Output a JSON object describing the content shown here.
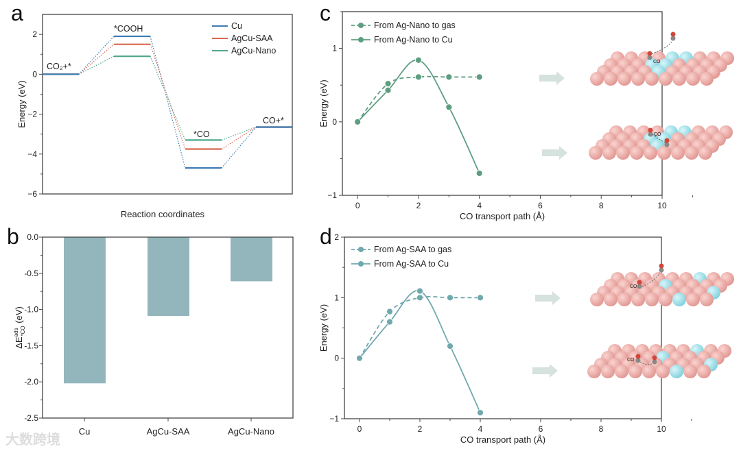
{
  "panel_labels": [
    "a",
    "b",
    "c",
    "d"
  ],
  "watermark": "大数跨境",
  "illustrations": {
    "co_label": "CO"
  },
  "chart_data": [
    {
      "panel": "a",
      "type": "line",
      "title": "",
      "xlabel": "Reaction coordinates",
      "ylabel": "Energy (eV)",
      "ylim": [
        -6,
        3
      ],
      "yticks": [
        -6,
        -4,
        -2,
        0,
        2
      ],
      "ytick_labels": [
        "−6",
        "−4",
        "−2",
        "0",
        "2"
      ],
      "categories": [
        "CO₂+*",
        "*COOH",
        "*CO",
        "CO+*"
      ],
      "legend_position": "top-right",
      "series": [
        {
          "name": "Cu",
          "color": "#3d7db5",
          "values": [
            0,
            1.9,
            -4.7,
            -2.65
          ]
        },
        {
          "name": "AgCu-SAA",
          "color": "#d9684f",
          "values": [
            0,
            1.5,
            -3.75,
            -2.65
          ]
        },
        {
          "name": "AgCu-Nano",
          "color": "#4fa88a",
          "values": [
            0,
            0.9,
            -3.3,
            -2.65
          ]
        }
      ]
    },
    {
      "panel": "b",
      "type": "bar",
      "xlabel": "",
      "ylabel": "ΔE",
      "ylabel_sup": "ads",
      "ylabel_sub": "*CO",
      "ylabel_unit": " (eV)",
      "ylim": [
        -2.5,
        0
      ],
      "yticks": [
        -2.5,
        -2.0,
        -1.5,
        -1.0,
        -0.5,
        0.0
      ],
      "ytick_labels": [
        "-2.5",
        "-2.0",
        "-1.5",
        "-1.0",
        "-0.5",
        "0.0"
      ],
      "categories": [
        "Cu",
        "AgCu-SAA",
        "AgCu-Nano"
      ],
      "values": [
        -2.02,
        -1.09,
        -0.61
      ],
      "color": "#93b6bc"
    },
    {
      "panel": "c",
      "type": "line",
      "xlabel": "CO transport path (Å)",
      "ylabel": "Energy (eV)",
      "xlim": [
        -0.5,
        10
      ],
      "ylim": [
        -1,
        1.5
      ],
      "xticks": [
        0,
        2,
        4,
        6,
        8,
        10
      ],
      "yticks": [
        -1,
        0,
        1
      ],
      "ytick_labels": [
        "−1",
        "0",
        "1"
      ],
      "legend_position": "top-left",
      "series": [
        {
          "name": "From Ag-Nano to gas",
          "style": "dashed",
          "color": "#5e9e80",
          "x": [
            0,
            1,
            2,
            3,
            4
          ],
          "y": [
            0,
            0.52,
            0.61,
            0.61,
            0.61
          ]
        },
        {
          "name": "From Ag-Nano to Cu",
          "style": "solid",
          "color": "#5e9e80",
          "x": [
            0,
            1,
            2,
            3,
            4
          ],
          "y": [
            0,
            0.43,
            0.84,
            0.2,
            -0.7
          ]
        }
      ]
    },
    {
      "panel": "d",
      "type": "line",
      "xlabel": "CO transport path (Å)",
      "ylabel": "Energy (eV)",
      "xlim": [
        -0.5,
        10
      ],
      "ylim": [
        -1,
        2
      ],
      "xticks": [
        0,
        2,
        4,
        6,
        8,
        10
      ],
      "yticks": [
        -1,
        0,
        1,
        2
      ],
      "ytick_labels": [
        "−1",
        "0",
        "1",
        "2"
      ],
      "legend_position": "top-left",
      "series": [
        {
          "name": "From Ag-SAA to gas",
          "style": "dashed",
          "color": "#6fa8ad",
          "x": [
            0,
            1,
            2,
            3,
            4
          ],
          "y": [
            0,
            0.77,
            1.0,
            1.0,
            1.0
          ]
        },
        {
          "name": "From Ag-SAA to Cu",
          "style": "solid",
          "color": "#6fa8ad",
          "x": [
            0,
            1,
            2,
            3,
            4
          ],
          "y": [
            0,
            0.6,
            1.11,
            0.2,
            -0.9
          ]
        }
      ]
    }
  ]
}
